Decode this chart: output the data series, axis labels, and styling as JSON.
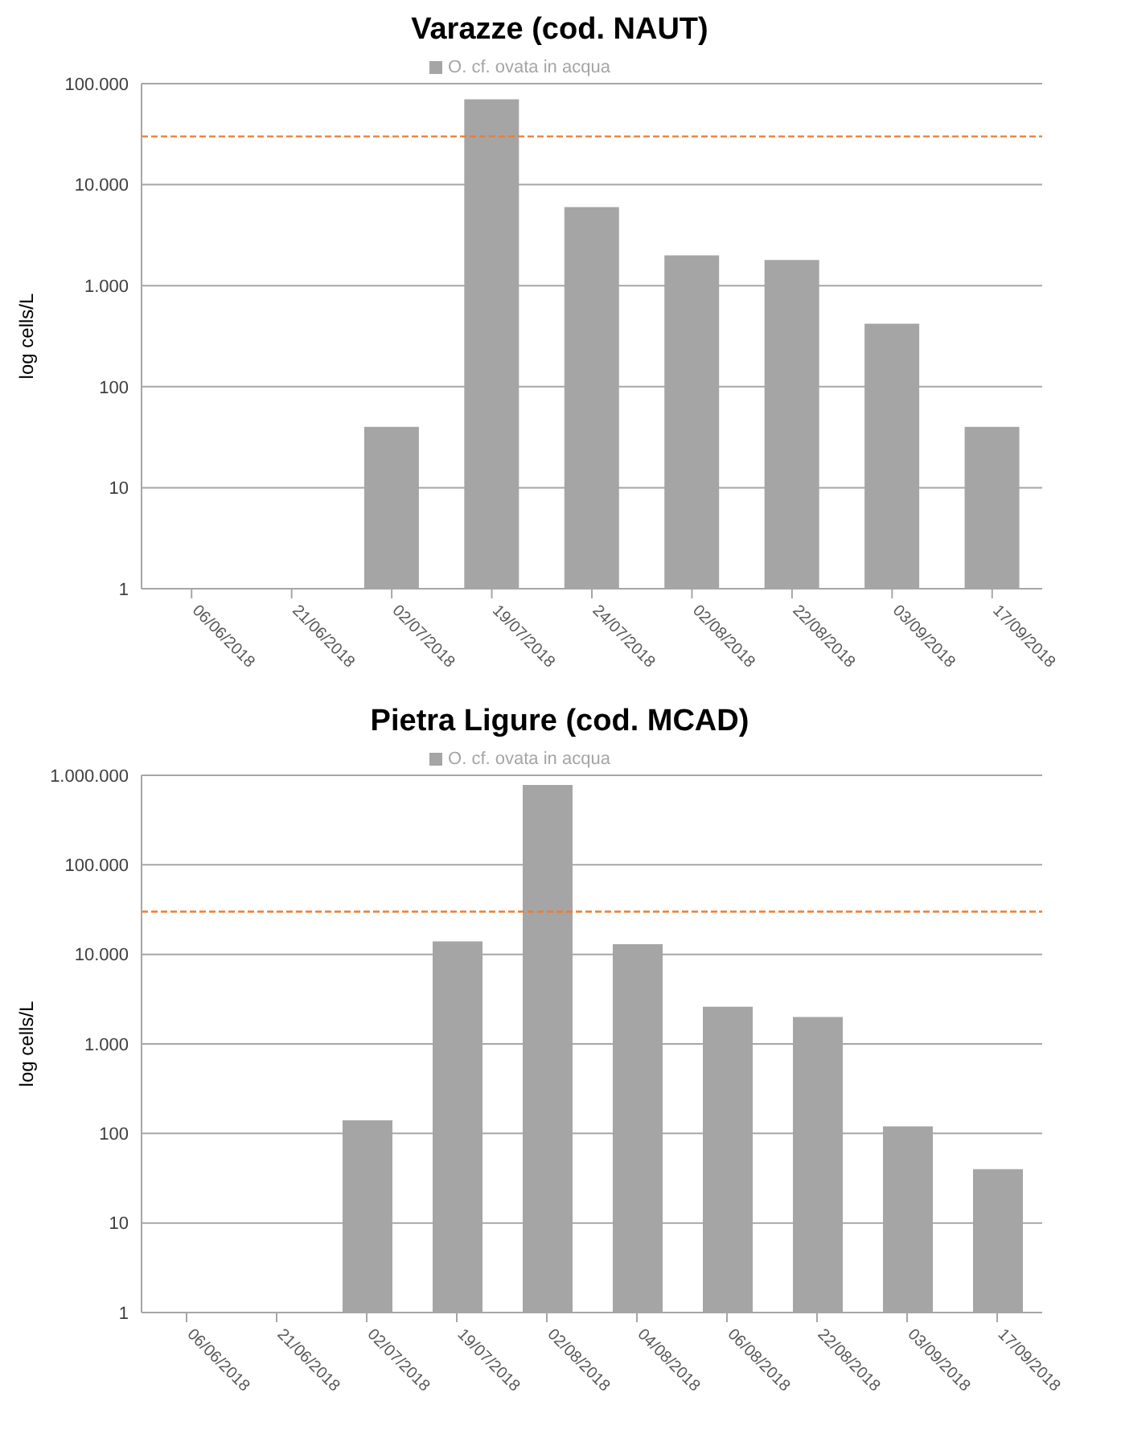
{
  "chart_data": [
    {
      "type": "bar",
      "title": "Varazze (cod. NAUT)",
      "ylabel": "log  cells/L",
      "log": "y",
      "grid": "y",
      "legend": "top",
      "categories": [
        "06/06/2018",
        "21/06/2018",
        "02/07/2018",
        "19/07/2018",
        "24/07/2018",
        "02/08/2018",
        "22/08/2018",
        "03/09/2018",
        "17/09/2018"
      ],
      "series": [
        {
          "name": "O. cf. ovata in acqua",
          "color": "#a5a5a5",
          "values": [
            null,
            null,
            40,
            70000,
            6000,
            2000,
            1800,
            420,
            40
          ]
        }
      ],
      "ylim": [
        1,
        100000
      ],
      "yticks": [
        1,
        10,
        100,
        {
          "value": 1000,
          "label": "1.000"
        },
        {
          "value": 10000,
          "label": "10.000"
        },
        {
          "value": 100000,
          "label": "100.000"
        }
      ],
      "ref_lines": [
        {
          "axis": "y",
          "value": 30000,
          "color": "#ed7d31",
          "line_style": "dashed"
        }
      ]
    },
    {
      "type": "bar",
      "title": "Pietra Ligure (cod. MCAD)",
      "ylabel": "log  cells/L",
      "log": "y",
      "grid": "y",
      "legend": "top",
      "categories": [
        "06/06/2018",
        "21/06/2018",
        "02/07/2018",
        "19/07/2018",
        "02/08/2018",
        "04/08/2018",
        "06/08/2018",
        "22/08/2018",
        "03/09/2018",
        "17/09/2018"
      ],
      "series": [
        {
          "name": "O. cf. ovata in acqua",
          "color": "#a5a5a5",
          "values": [
            null,
            null,
            140,
            14000,
            780000,
            13000,
            2600,
            2000,
            120,
            40
          ]
        }
      ],
      "ylim": [
        1,
        1000000
      ],
      "yticks": [
        1,
        10,
        100,
        {
          "value": 1000,
          "label": "1.000"
        },
        {
          "value": 10000,
          "label": "10.000"
        },
        {
          "value": 100000,
          "label": "100.000"
        },
        {
          "value": 1000000,
          "label": "1.000.000"
        }
      ],
      "ref_lines": [
        {
          "axis": "y",
          "value": 30000,
          "color": "#ed7d31",
          "line_style": "dashed"
        }
      ]
    }
  ]
}
